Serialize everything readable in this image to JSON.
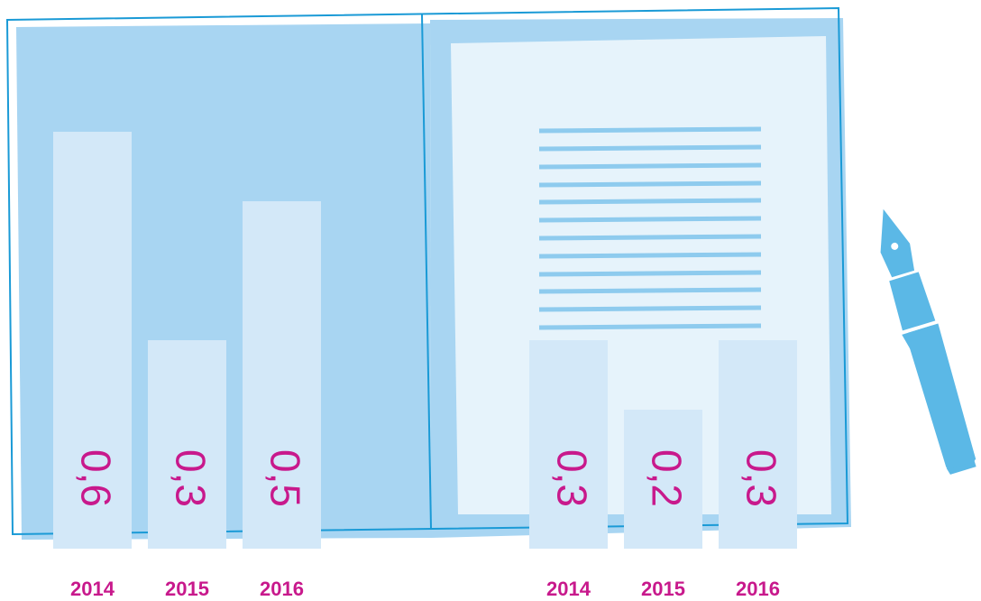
{
  "chart_data": [
    {
      "type": "bar",
      "categories": [
        "2014",
        "2015",
        "2016"
      ],
      "values": [
        0.6,
        0.3,
        0.5
      ],
      "value_labels": [
        "0,6",
        "0,3",
        "0,5"
      ],
      "color": "#d3e8f8"
    },
    {
      "type": "bar",
      "categories": [
        "2014",
        "2015",
        "2016"
      ],
      "values": [
        0.3,
        0.2,
        0.3
      ],
      "value_labels": [
        "0,3",
        "0,2",
        "0,3"
      ],
      "color": "#d3e8f8"
    }
  ]
}
